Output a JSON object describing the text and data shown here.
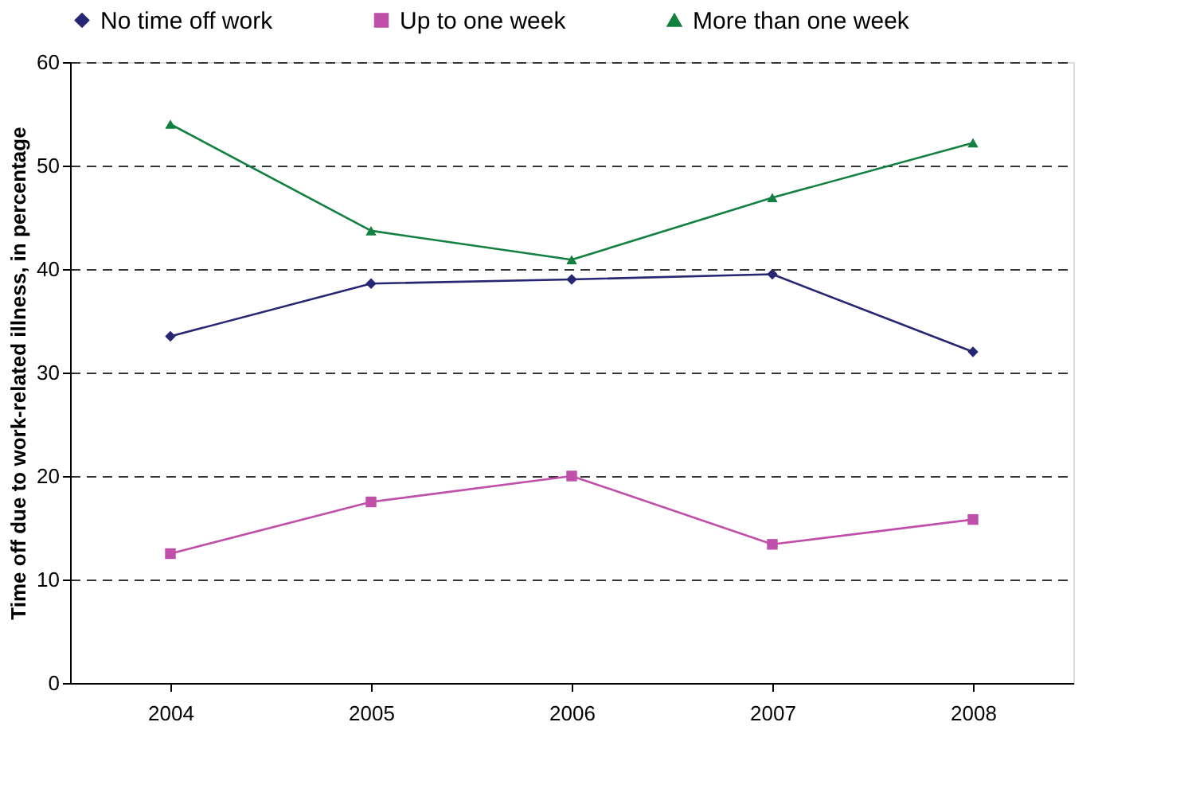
{
  "chart_data": {
    "type": "line",
    "ylabel": "Time off due to work-related illness, in percentage",
    "categories": [
      "2004",
      "2005",
      "2006",
      "2007",
      "2008"
    ],
    "series": [
      {
        "name": "No time off work",
        "color": "#262673",
        "marker": "diamond",
        "values": [
          33.5,
          38.6,
          39.0,
          39.5,
          32.0
        ]
      },
      {
        "name": "Up to one week",
        "color": "#bf4fa8",
        "marker": "square",
        "values": [
          12.5,
          17.5,
          20.0,
          13.4,
          15.8
        ]
      },
      {
        "name": "More than one week",
        "color": "#128040",
        "marker": "triangle",
        "values": [
          54.0,
          43.7,
          40.9,
          46.9,
          52.2
        ]
      }
    ],
    "ylim": [
      0,
      60
    ],
    "yticks": [
      0,
      10,
      20,
      30,
      40,
      50,
      60
    ],
    "grid": "y",
    "legend": "top",
    "line_style": "solid"
  }
}
